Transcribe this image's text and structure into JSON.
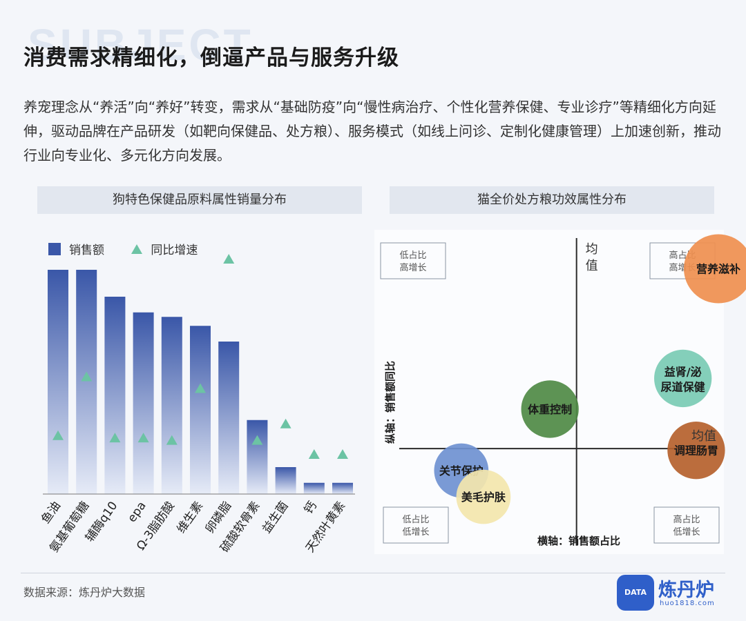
{
  "page": {
    "bg_word": "SUBJECT",
    "title": "消费需求精细化，倒逼产品与服务升级",
    "intro": "养宠理念从“养活”向“养好”转变，需求从“基础防疫”向“慢性病治疗、个性化营养保健、专业诊疗”等精细化方向延伸，驱动品牌在产品研发（如靶向保健品、处方粮）、服务模式（如线上问诊、定制化健康管理）上加速创新，推动行业向专业化、多元化方向发展。",
    "source": "数据来源：炼丹炉大数据",
    "logo": {
      "badge": "DATA",
      "name": "炼丹炉",
      "url": "huo1818.com"
    }
  },
  "colors": {
    "bar_top": "#3a57a8",
    "bar_bottom": "#e6ebf7",
    "triangle": "#6cc3a4",
    "axis": "#2a2a2a"
  },
  "chart_data": [
    {
      "type": "bar",
      "title": "狗特色保健品原料属性销量分布",
      "legend": [
        "销售额",
        "同比增速"
      ],
      "categories": [
        "鱼油",
        "氨基葡萄糖",
        "辅酶q10",
        "epa",
        "Ω-3脂肪酸",
        "维生素",
        "卵磷脂",
        "硫酸软骨素",
        "益生菌",
        "钙",
        "天然叶黄素"
      ],
      "series": [
        {
          "name": "销售额",
          "values": [
            100,
            100,
            88,
            81,
            79,
            75,
            68,
            33,
            12,
            5,
            5
          ]
        },
        {
          "name": "同比增速",
          "values": [
            25,
            50,
            24,
            24,
            23,
            45,
            100,
            23,
            30,
            17,
            17
          ]
        }
      ],
      "note": "relative values read from bar heights / marker heights; no axis printed"
    },
    {
      "type": "scatter",
      "title": "猫全价处方粮功效属性分布",
      "xlabel": "横轴：销售额占比",
      "ylabel": "纵轴：销售额同比",
      "x_mean_label": "均值",
      "y_mean_label": "均值",
      "quadrants": [
        {
          "name": "top-left",
          "label": "低占比\n高增长"
        },
        {
          "name": "top-right",
          "label": "高占比\n高增长"
        },
        {
          "name": "bottom-left",
          "label": "低占比\n低增长"
        },
        {
          "name": "bottom-right",
          "label": "高占比\n低增长"
        }
      ],
      "points": [
        {
          "label": "营养滋补",
          "x": 1.6,
          "y": 2.05,
          "size": 1.0,
          "color": "#ef8f4f"
        },
        {
          "label": "益肾/泌尿道保健",
          "x": 1.2,
          "y": 0.8,
          "size": 0.78,
          "color": "#79cbb4"
        },
        {
          "label": "体重控制",
          "x": -0.3,
          "y": 0.45,
          "size": 0.78,
          "color": "#4f8a45"
        },
        {
          "label": "调理肠胃",
          "x": 1.35,
          "y": -0.02,
          "size": 0.78,
          "color": "#b5612d"
        },
        {
          "label": "关节保护",
          "x": -1.3,
          "y": -0.25,
          "size": 0.72,
          "color": "#6f91d1"
        },
        {
          "label": "美毛护肤",
          "x": -1.05,
          "y": -0.55,
          "size": 0.72,
          "color": "#f3e6ad"
        }
      ],
      "xlim": [
        -2,
        1.6
      ],
      "ylim": [
        -1.1,
        2.4
      ],
      "note": "axes centred at means; coordinates relative (no scale printed)"
    }
  ]
}
